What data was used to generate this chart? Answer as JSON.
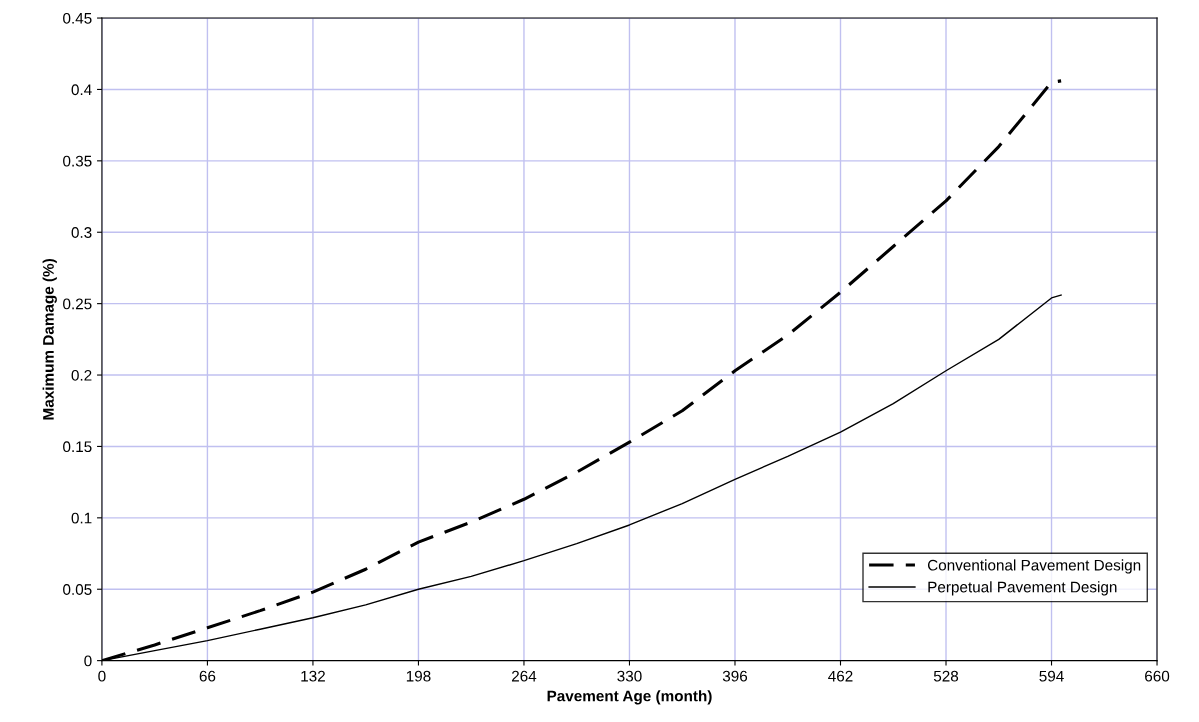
{
  "chart_data": {
    "type": "line",
    "xlabel": "Pavement Age (month)",
    "ylabel": "Maximum Damage (%)",
    "xlim": [
      0,
      660
    ],
    "xticks": [
      0,
      66,
      132,
      198,
      264,
      330,
      396,
      462,
      528,
      594,
      660
    ],
    "ylim": [
      0,
      0.45
    ],
    "yticks": [
      0,
      0.05,
      0.1,
      0.15,
      0.2,
      0.25,
      0.3,
      0.35,
      0.4,
      0.45
    ],
    "grid": true,
    "legend": "lower right",
    "marker": "none",
    "x": [
      0,
      33,
      66,
      99,
      132,
      165,
      198,
      231,
      264,
      297,
      330,
      363,
      396,
      429,
      462,
      495,
      528,
      561,
      594,
      600
    ],
    "series": [
      {
        "name": "Conventional Pavement Design",
        "color": "#000000",
        "line_style": "dashed",
        "values": [
          0,
          0.011,
          0.023,
          0.035,
          0.048,
          0.064,
          0.083,
          0.097,
          0.113,
          0.132,
          0.153,
          0.175,
          0.203,
          0.228,
          0.258,
          0.29,
          0.322,
          0.36,
          0.405,
          0.406
        ]
      },
      {
        "name": "Perpetual Pavement Design",
        "color": "#000000",
        "line_style": "solid",
        "values": [
          0,
          0.007,
          0.014,
          0.022,
          0.03,
          0.039,
          0.05,
          0.059,
          0.07,
          0.082,
          0.095,
          0.11,
          0.127,
          0.143,
          0.16,
          0.18,
          0.203,
          0.225,
          0.254,
          0.256
        ]
      }
    ]
  }
}
